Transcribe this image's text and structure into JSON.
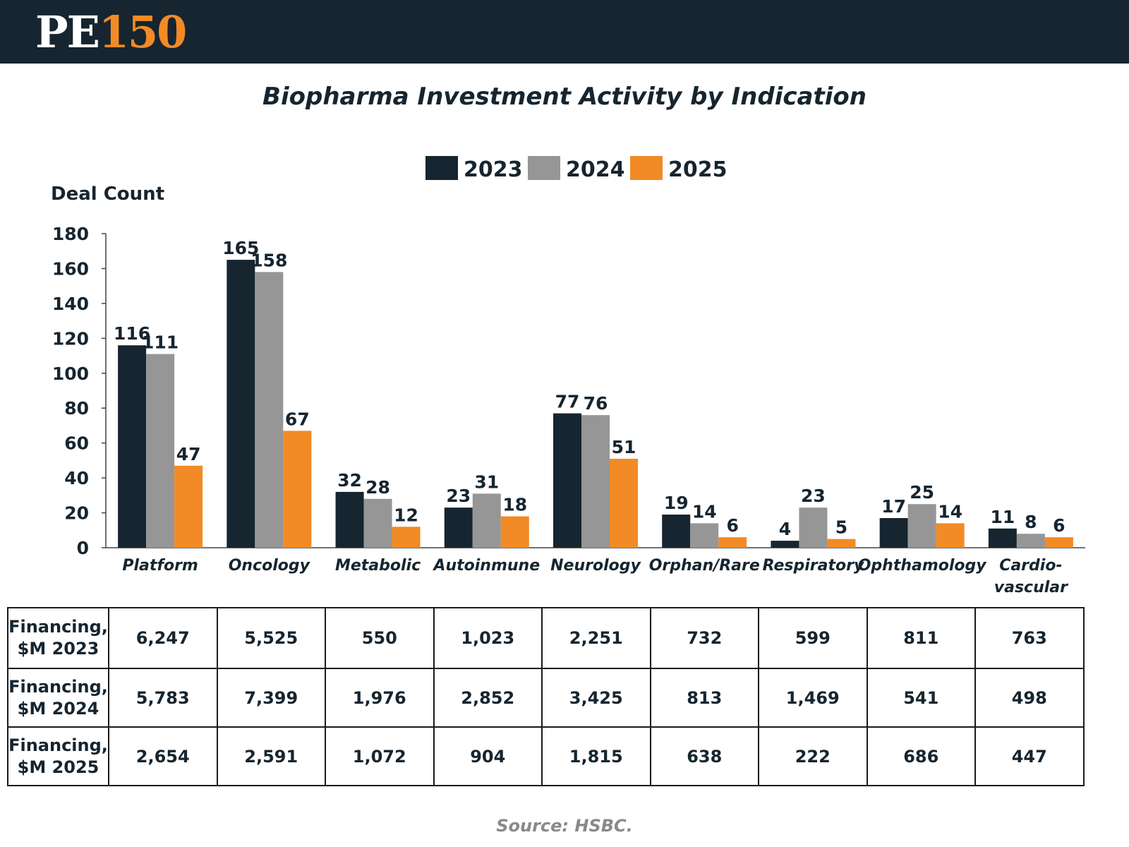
{
  "header": {
    "logo_text": "PE",
    "logo_number": "150"
  },
  "chart_data": {
    "type": "bar",
    "title": "Biopharma Investment Activity by Indication",
    "ylabel": "Deal Count",
    "xlabel": "",
    "ylim": [
      0,
      180
    ],
    "yticks": [
      0,
      20,
      40,
      60,
      80,
      100,
      120,
      140,
      160,
      180
    ],
    "legend_placement": "top-center",
    "categories": [
      "Platform",
      "Oncology",
      "Metabolic",
      "Autoinmune",
      "Neurology",
      "Orphan/Rare",
      "Respiratory",
      "Ophthamology",
      "Cardio-vascular"
    ],
    "category_label_lines": [
      [
        "Platform"
      ],
      [
        "Oncology"
      ],
      [
        "Metabolic"
      ],
      [
        "Autoinmune"
      ],
      [
        "Neurology"
      ],
      [
        "Orphan/Rare"
      ],
      [
        "Respiratory"
      ],
      [
        "Ophthamology"
      ],
      [
        "Cardio-",
        "vascular"
      ]
    ],
    "series": [
      {
        "name": "2023",
        "color": "#16252f",
        "values": [
          116,
          165,
          32,
          23,
          77,
          19,
          4,
          17,
          11
        ]
      },
      {
        "name": "2024",
        "color": "#969696",
        "values": [
          111,
          158,
          28,
          31,
          76,
          14,
          23,
          25,
          8
        ]
      },
      {
        "name": "2025",
        "color": "#f28a25",
        "values": [
          47,
          67,
          12,
          18,
          51,
          6,
          5,
          14,
          6
        ]
      }
    ]
  },
  "table": {
    "rows": [
      {
        "label_line1": "Financing,",
        "label_line2": "$M 2023",
        "values": [
          "6,247",
          "5,525",
          "550",
          "1,023",
          "2,251",
          "732",
          "599",
          "811",
          "763"
        ]
      },
      {
        "label_line1": "Financing,",
        "label_line2": "$M 2024",
        "values": [
          "5,783",
          "7,399",
          "1,976",
          "2,852",
          "3,425",
          "813",
          "1,469",
          "541",
          "498"
        ]
      },
      {
        "label_line1": "Financing,",
        "label_line2": "$M 2025",
        "values": [
          "2,654",
          "2,591",
          "1,072",
          "904",
          "1,815",
          "638",
          "222",
          "686",
          "447"
        ]
      }
    ]
  },
  "source": "Source: HSBC."
}
